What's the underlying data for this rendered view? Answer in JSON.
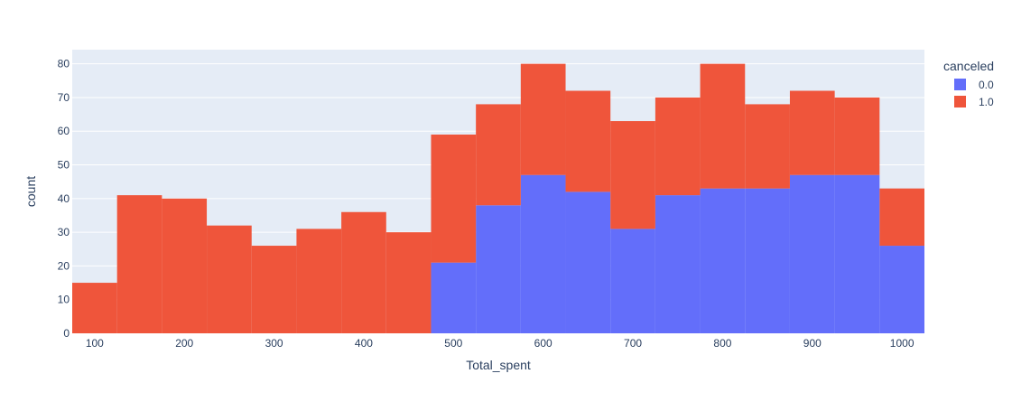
{
  "chart_data": {
    "type": "bar",
    "stacked": true,
    "bin_width": 50,
    "bin_centers": [
      100,
      150,
      200,
      250,
      300,
      350,
      400,
      450,
      500,
      550,
      600,
      650,
      700,
      750,
      800,
      850,
      900,
      950,
      1000
    ],
    "series": [
      {
        "name": "0.0",
        "color": "#636efa",
        "values": [
          0,
          0,
          0,
          0,
          0,
          0,
          0,
          0,
          21,
          38,
          47,
          42,
          31,
          41,
          43,
          43,
          47,
          47,
          26
        ]
      },
      {
        "name": "1.0",
        "color": "#ef553b",
        "values": [
          15,
          41,
          40,
          32,
          26,
          31,
          36,
          30,
          38,
          30,
          33,
          30,
          32,
          29,
          37,
          25,
          25,
          23,
          17
        ]
      }
    ],
    "xlabel": "Total_spent",
    "ylabel": "count",
    "xlim": [
      75,
      1025
    ],
    "ylim": [
      0,
      84.2
    ],
    "x_ticks": [
      100,
      200,
      300,
      400,
      500,
      600,
      700,
      800,
      900,
      1000
    ],
    "y_ticks": [
      0,
      10,
      20,
      30,
      40,
      50,
      60,
      70,
      80
    ],
    "legend_title": "canceled",
    "legend_position": "top-right",
    "grid": true,
    "plot_bgcolor": "#e5ecf6"
  }
}
